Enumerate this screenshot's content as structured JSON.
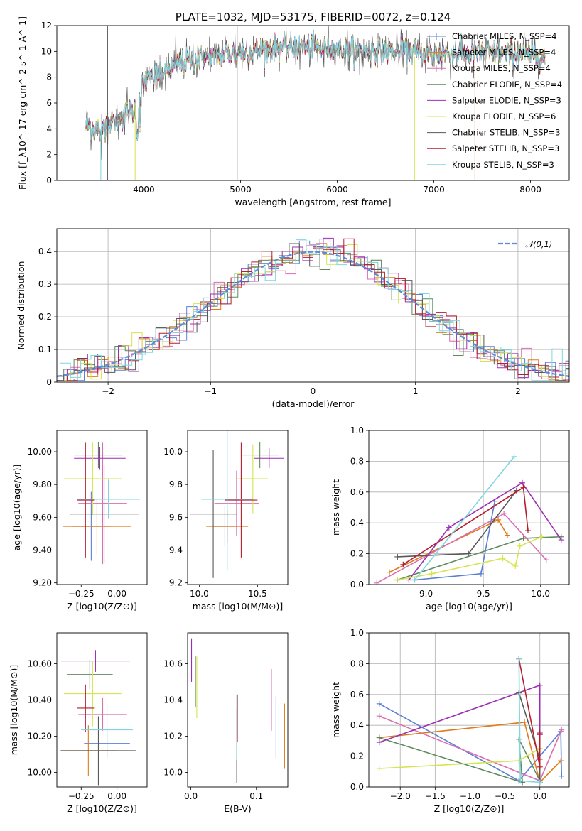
{
  "colors": [
    "#5b7fd6",
    "#e07b1a",
    "#d86faf",
    "#5f8a5f",
    "#9b2fb3",
    "#d6e44f",
    "#585858",
    "#b51e2e",
    "#7fd6df"
  ],
  "chart_data": [
    {
      "id": "spectrum",
      "type": "line",
      "title": "PLATE=1032, MJD=53175, FIBERID=0072, z=0.124",
      "xlabel": "wavelength [Angstrom, rest frame]",
      "ylabel": "Flux [f_λ10^-17 erg cm^-2 s^-1 A^-1]",
      "xlim": [
        3100,
        8400
      ],
      "ylim": [
        0,
        12
      ],
      "xticks": [
        4000,
        5000,
        6000,
        7000,
        8000
      ],
      "yticks": [
        0,
        2,
        4,
        6,
        8,
        10,
        12
      ],
      "grid": false,
      "legend_position": "top-right",
      "legend": [
        "Chabrier MILES, N_SSP=4",
        "Salpeter MILES, N_SSP=4",
        "Kroupa MILES, N_SSP=4",
        "Chabrier ELODIE, N_SSP=4",
        "Salpeter ELODIE, N_SSP=3",
        "Kroupa ELODIE, N_SSP=6",
        "Chabrier STELIB, N_SSP=3",
        "Salpeter STELIB, N_SSP=3",
        "Kroupa STELIB, N_SSP=3"
      ],
      "data_range": [
        3400,
        8150
      ],
      "continuum": {
        "x": [
          3400,
          3500,
          3700,
          3900,
          4000,
          4200,
          4500,
          5000,
          5500,
          6000,
          6500,
          7000,
          7500,
          8000,
          8150
        ],
        "y": [
          4.3,
          4.0,
          4.6,
          5.6,
          7.6,
          8.4,
          9.4,
          9.9,
          10.4,
          10.2,
          10.0,
          9.8,
          9.9,
          9.7,
          9.6
        ]
      }
    },
    {
      "id": "residuals",
      "type": "histogram",
      "xlabel": "(data-model)/error",
      "ylabel": "Normed distribution",
      "xlim": [
        -2.5,
        2.5
      ],
      "ylim": [
        0,
        0.47
      ],
      "xticks": [
        -2,
        -1,
        0,
        1,
        2
      ],
      "yticks": [
        0.0,
        0.1,
        0.2,
        0.3,
        0.4
      ],
      "grid": true,
      "legend": [
        "𝒩(0,1)"
      ],
      "legend_position": "top-right",
      "bin_width": 0.1
    },
    {
      "id": "age-vs-Z",
      "type": "errorbar",
      "xlabel": "Z [log10(Z/Z⊙)]",
      "ylabel": "age  [log10(age/yr)]",
      "xlim": [
        -0.42,
        0.21
      ],
      "ylim": [
        9.19,
        10.13
      ],
      "xticks": [
        -0.25,
        0.0
      ],
      "yticks": [
        9.2,
        9.4,
        9.6,
        9.8,
        10.0
      ],
      "points": [
        {
          "x": -0.18,
          "y": 9.545,
          "xerr": 0.13,
          "yerr": 0.21
        },
        {
          "x": -0.14,
          "y": 9.545,
          "xerr": 0.24,
          "yerr": 0.17
        },
        {
          "x": -0.1,
          "y": 9.685,
          "xerr": 0.17,
          "yerr": 0.37
        },
        {
          "x": -0.13,
          "y": 9.98,
          "xerr": 0.17,
          "yerr": 0.08
        },
        {
          "x": -0.12,
          "y": 9.96,
          "xerr": 0.18,
          "yerr": 0.07
        },
        {
          "x": -0.17,
          "y": 9.835,
          "xerr": 0.2,
          "yerr": 0.22
        },
        {
          "x": -0.09,
          "y": 9.62,
          "xerr": 0.24,
          "yerr": 0.3
        },
        {
          "x": -0.22,
          "y": 9.705,
          "xerr": 0.06,
          "yerr": 0.35
        },
        {
          "x": -0.06,
          "y": 9.71,
          "xerr": 0.22,
          "yerr": 0.12
        }
      ]
    },
    {
      "id": "age-vs-mass",
      "type": "errorbar",
      "xlabel": "mass [log10(M/M⊙)]",
      "ylabel": "",
      "xlim": [
        9.9,
        10.76
      ],
      "ylim": [
        9.19,
        10.13
      ],
      "xticks": [
        10.0,
        10.5
      ],
      "yticks": [
        9.2,
        9.4,
        9.6,
        9.8,
        10.0
      ],
      "points": [
        {
          "x": 10.22,
          "y": 9.545,
          "xerr": 0.1,
          "yerr": 0.12
        },
        {
          "x": 10.24,
          "y": 9.545,
          "xerr": 0.18,
          "yerr": 0.1
        },
        {
          "x": 10.32,
          "y": 9.685,
          "xerr": 0.19,
          "yerr": 0.2
        },
        {
          "x": 10.52,
          "y": 9.98,
          "xerr": 0.16,
          "yerr": 0.08
        },
        {
          "x": 10.6,
          "y": 9.96,
          "xerr": 0.13,
          "yerr": 0.06
        },
        {
          "x": 10.46,
          "y": 9.835,
          "xerr": 0.13,
          "yerr": 0.21
        },
        {
          "x": 10.12,
          "y": 9.62,
          "xerr": 0.2,
          "yerr": 0.39
        },
        {
          "x": 10.36,
          "y": 9.705,
          "xerr": 0.14,
          "yerr": 0.35
        },
        {
          "x": 10.24,
          "y": 9.71,
          "xerr": 0.22,
          "yerr": 0.43
        }
      ]
    },
    {
      "id": "massweight-vs-age",
      "type": "line",
      "xlabel": "age  [log10(age/yr)]",
      "ylabel": "mass weight",
      "xlim": [
        8.5,
        10.25
      ],
      "ylim": [
        0,
        1
      ],
      "xticks": [
        9.0,
        9.5,
        10.0
      ],
      "yticks": [
        0.0,
        0.2,
        0.4,
        0.6,
        0.8,
        1.0
      ],
      "grid": true,
      "series": [
        {
          "x": [
            8.9,
            9.48,
            9.6
          ],
          "y": [
            0.03,
            0.07,
            0.54
          ]
        },
        {
          "x": [
            8.68,
            9.63,
            9.71
          ],
          "y": [
            0.08,
            0.42,
            0.32
          ]
        },
        {
          "x": [
            8.57,
            9.68,
            10.05
          ],
          "y": [
            0.01,
            0.46,
            0.16
          ]
        },
        {
          "x": [
            8.75,
            9.85,
            10.18
          ],
          "y": [
            0.03,
            0.3,
            0.31
          ]
        },
        {
          "x": [
            8.85,
            9.2,
            9.84,
            10.18
          ],
          "y": [
            0.03,
            0.37,
            0.66,
            0.29
          ]
        },
        {
          "x": [
            8.75,
            9.05,
            9.67,
            9.78,
            9.82,
            10.01
          ],
          "y": [
            0.03,
            0.07,
            0.17,
            0.12,
            0.25,
            0.31
          ]
        },
        {
          "x": [
            8.75,
            9.37,
            9.79
          ],
          "y": [
            0.18,
            0.2,
            0.61
          ]
        },
        {
          "x": [
            8.8,
            9.85,
            9.89
          ],
          "y": [
            0.13,
            0.63,
            0.35
          ]
        },
        {
          "x": [
            8.9,
            9.77
          ],
          "y": [
            0.03,
            0.83
          ]
        }
      ]
    },
    {
      "id": "mass-vs-Z",
      "type": "errorbar",
      "xlabel": "Z [log10(Z/Z⊙)]",
      "ylabel": "mass [log10(M/M⊙)]",
      "xlim": [
        -0.42,
        0.21
      ],
      "ylim": [
        9.92,
        10.77
      ],
      "xticks": [
        -0.25,
        0.0
      ],
      "yticks": [
        10.0,
        10.2,
        10.4,
        10.6
      ],
      "points": [
        {
          "x": -0.07,
          "y": 10.16,
          "xerr": 0.16,
          "yerr": 0.08
        },
        {
          "x": -0.2,
          "y": 10.12,
          "xerr": 0.2,
          "yerr": 0.14
        },
        {
          "x": -0.1,
          "y": 10.32,
          "xerr": 0.17,
          "yerr": 0.09
        },
        {
          "x": -0.19,
          "y": 10.54,
          "xerr": 0.16,
          "yerr": 0.08
        },
        {
          "x": -0.15,
          "y": 10.615,
          "xerr": 0.24,
          "yerr": 0.06
        },
        {
          "x": -0.17,
          "y": 10.435,
          "xerr": 0.2,
          "yerr": 0.18
        },
        {
          "x": -0.13,
          "y": 10.12,
          "xerr": 0.26,
          "yerr": 0.19
        },
        {
          "x": -0.22,
          "y": 10.355,
          "xerr": 0.06,
          "yerr": 0.13
        },
        {
          "x": -0.07,
          "y": 10.235,
          "xerr": 0.18,
          "yerr": 0.14
        }
      ]
    },
    {
      "id": "mass-vs-EBV",
      "type": "errorbar",
      "xlabel": "E(B-V)",
      "ylabel": "",
      "xlim": [
        -0.005,
        0.148
      ],
      "ylim": [
        9.92,
        10.77
      ],
      "xticks": [
        0.0,
        0.1
      ],
      "yticks": [
        10.0,
        10.2,
        10.4,
        10.6
      ],
      "points": [
        {
          "x": 0.13,
          "y": 10.25,
          "xerr": 0,
          "yerr": 0.17
        },
        {
          "x": 0.143,
          "y": 10.2,
          "xerr": 0,
          "yerr": 0.18
        },
        {
          "x": 0.123,
          "y": 10.4,
          "xerr": 0,
          "yerr": 0.17
        },
        {
          "x": 0.007,
          "y": 10.5,
          "xerr": 0,
          "yerr": 0.14
        },
        {
          "x": 0.001,
          "y": 10.62,
          "xerr": 0,
          "yerr": 0.12
        },
        {
          "x": 0.009,
          "y": 10.47,
          "xerr": 0,
          "yerr": 0.17
        },
        {
          "x": 0.07,
          "y": 10.15,
          "xerr": 0,
          "yerr": 0.21
        },
        {
          "x": 0.071,
          "y": 10.3,
          "xerr": 0,
          "yerr": 0.13
        },
        {
          "x": 0.07,
          "y": 10.25,
          "xerr": 0,
          "yerr": 0.18
        }
      ]
    },
    {
      "id": "massweight-vs-Z",
      "type": "line",
      "xlabel": "Z [log10(Z/Z⊙)]",
      "ylabel": "mass weight",
      "xlim": [
        -2.45,
        0.42
      ],
      "ylim": [
        0,
        1
      ],
      "xticks": [
        -2.0,
        -1.5,
        -1.0,
        -0.5,
        0.0
      ],
      "yticks": [
        0.0,
        0.2,
        0.4,
        0.6,
        0.8,
        1.0
      ],
      "grid": true,
      "series": [
        {
          "x": [
            -2.3,
            -0.3,
            0.3,
            0.31
          ],
          "y": [
            0.54,
            0.04,
            0.36,
            0.07
          ]
        },
        {
          "x": [
            -2.3,
            -0.22,
            0.0,
            0.3
          ],
          "y": [
            0.32,
            0.42,
            0.03,
            0.17
          ]
        },
        {
          "x": [
            -2.3,
            0.0,
            0.31
          ],
          "y": [
            0.46,
            0.04,
            0.37
          ]
        },
        {
          "x": [
            -2.3,
            -0.25,
            -0.3,
            0.0
          ],
          "y": [
            0.32,
            0.03,
            0.31,
            0.04
          ]
        },
        {
          "x": [
            -2.3,
            0.0,
            0.0
          ],
          "y": [
            0.29,
            0.66,
            0.34
          ]
        },
        {
          "x": [
            -2.3,
            -0.3,
            0.0,
            0.0
          ],
          "y": [
            0.12,
            0.17,
            0.25,
            0.03
          ]
        },
        {
          "x": [
            -0.3,
            0.0,
            0.0
          ],
          "y": [
            0.61,
            0.18,
            0.03
          ]
        },
        {
          "x": [
            -0.3,
            0.0,
            0.0
          ],
          "y": [
            0.83,
            0.13,
            0.35
          ]
        },
        {
          "x": [
            -0.3,
            -0.28,
            0.0
          ],
          "y": [
            0.83,
            0.04,
            0.03
          ]
        }
      ]
    }
  ]
}
